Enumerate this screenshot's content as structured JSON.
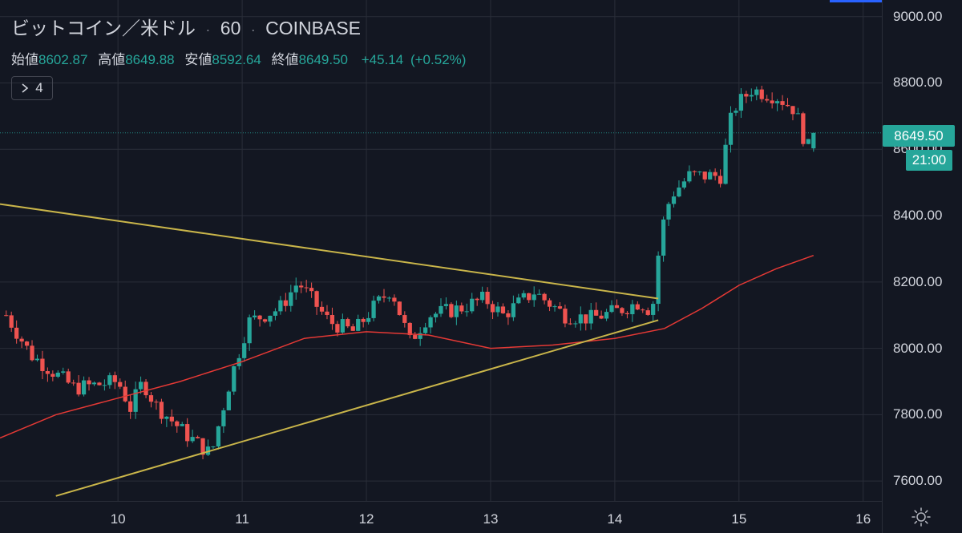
{
  "header": {
    "symbol": "ビットコイン／米ドル",
    "interval": "60",
    "exchange": "COINBASE",
    "separator": "·"
  },
  "ohlc": {
    "open_label": "始値",
    "open": "8602.87",
    "high_label": "高値",
    "high": "8649.88",
    "low_label": "安値",
    "low": "8592.64",
    "close_label": "終値",
    "close": "8649.50",
    "change": "+45.14",
    "change_pct": "(+0.52%)"
  },
  "indicator_toggle": {
    "icon": "chevron-right-icon",
    "count": "4"
  },
  "badges": {
    "last_price": "8649.50",
    "countdown": "21:00"
  },
  "colors": {
    "background": "#131722",
    "up": "#26a69a",
    "down": "#ef5350",
    "ma": "#e53935",
    "trendline": "#c9b54a",
    "grid": "#2a2e39",
    "accent_blue": "#2962ff"
  },
  "chart_data": {
    "type": "candlestick",
    "title": "ビットコイン／米ドル · 60 · COINBASE",
    "xlabel": "",
    "ylabel": "",
    "x_unit": "day of month (hourly candles)",
    "xlim": [
      9.05,
      16.15
    ],
    "ylim": [
      7540,
      9050
    ],
    "x_ticks": [
      10,
      11,
      12,
      13,
      14,
      15,
      16
    ],
    "y_ticks": [
      "7600.00",
      "7800.00",
      "8000.00",
      "8200.00",
      "8400.00",
      "8600.00",
      "8800.00",
      "9000.00"
    ],
    "grid": true,
    "key_points": [
      {
        "x": 9.1,
        "close": 8100
      },
      {
        "x": 9.3,
        "close": 7980
      },
      {
        "x": 9.65,
        "close": 7880
      },
      {
        "x": 10.0,
        "close": 7900
      },
      {
        "x": 10.1,
        "close": 7820
      },
      {
        "x": 10.2,
        "close": 7900
      },
      {
        "x": 10.3,
        "close": 7830
      },
      {
        "x": 10.55,
        "close": 7740
      },
      {
        "x": 10.75,
        "close": 7680
      },
      {
        "x": 10.9,
        "close": 7900
      },
      {
        "x": 11.05,
        "close": 8080
      },
      {
        "x": 11.3,
        "close": 8120
      },
      {
        "x": 11.45,
        "close": 8200
      },
      {
        "x": 11.7,
        "close": 8080
      },
      {
        "x": 11.9,
        "close": 8050
      },
      {
        "x": 12.05,
        "close": 8120
      },
      {
        "x": 12.2,
        "close": 8180
      },
      {
        "x": 12.35,
        "close": 8020
      },
      {
        "x": 12.5,
        "close": 8100
      },
      {
        "x": 12.75,
        "close": 8120
      },
      {
        "x": 12.95,
        "close": 8150
      },
      {
        "x": 13.1,
        "close": 8100
      },
      {
        "x": 13.35,
        "close": 8170
      },
      {
        "x": 13.6,
        "close": 8100
      },
      {
        "x": 13.8,
        "close": 8090
      },
      {
        "x": 14.0,
        "close": 8110
      },
      {
        "x": 14.2,
        "close": 8140
      },
      {
        "x": 14.3,
        "close": 8110
      },
      {
        "x": 14.37,
        "close": 8350
      },
      {
        "x": 14.45,
        "close": 8460
      },
      {
        "x": 14.6,
        "close": 8520
      },
      {
        "x": 14.85,
        "close": 8520
      },
      {
        "x": 14.95,
        "close": 8720
      },
      {
        "x": 15.1,
        "close": 8780
      },
      {
        "x": 15.3,
        "close": 8760
      },
      {
        "x": 15.45,
        "close": 8720
      },
      {
        "x": 15.55,
        "close": 8600
      },
      {
        "x": 15.62,
        "close": 8649.5
      }
    ],
    "moving_average": [
      {
        "x": 9.05,
        "y": 7730
      },
      {
        "x": 9.5,
        "y": 7800
      },
      {
        "x": 10.0,
        "y": 7850
      },
      {
        "x": 10.5,
        "y": 7900
      },
      {
        "x": 11.0,
        "y": 7960
      },
      {
        "x": 11.5,
        "y": 8030
      },
      {
        "x": 12.0,
        "y": 8050
      },
      {
        "x": 12.5,
        "y": 8040
      },
      {
        "x": 13.0,
        "y": 8000
      },
      {
        "x": 13.5,
        "y": 8010
      },
      {
        "x": 14.0,
        "y": 8030
      },
      {
        "x": 14.4,
        "y": 8060
      },
      {
        "x": 14.7,
        "y": 8120
      },
      {
        "x": 15.0,
        "y": 8190
      },
      {
        "x": 15.3,
        "y": 8240
      },
      {
        "x": 15.6,
        "y": 8280
      }
    ],
    "trendlines": [
      {
        "x1": 9.05,
        "y1": 8435,
        "x2": 14.35,
        "y2": 8150
      },
      {
        "x1": 9.5,
        "y1": 7555,
        "x2": 14.35,
        "y2": 8085
      }
    ],
    "last_price_line": 8649.5
  }
}
